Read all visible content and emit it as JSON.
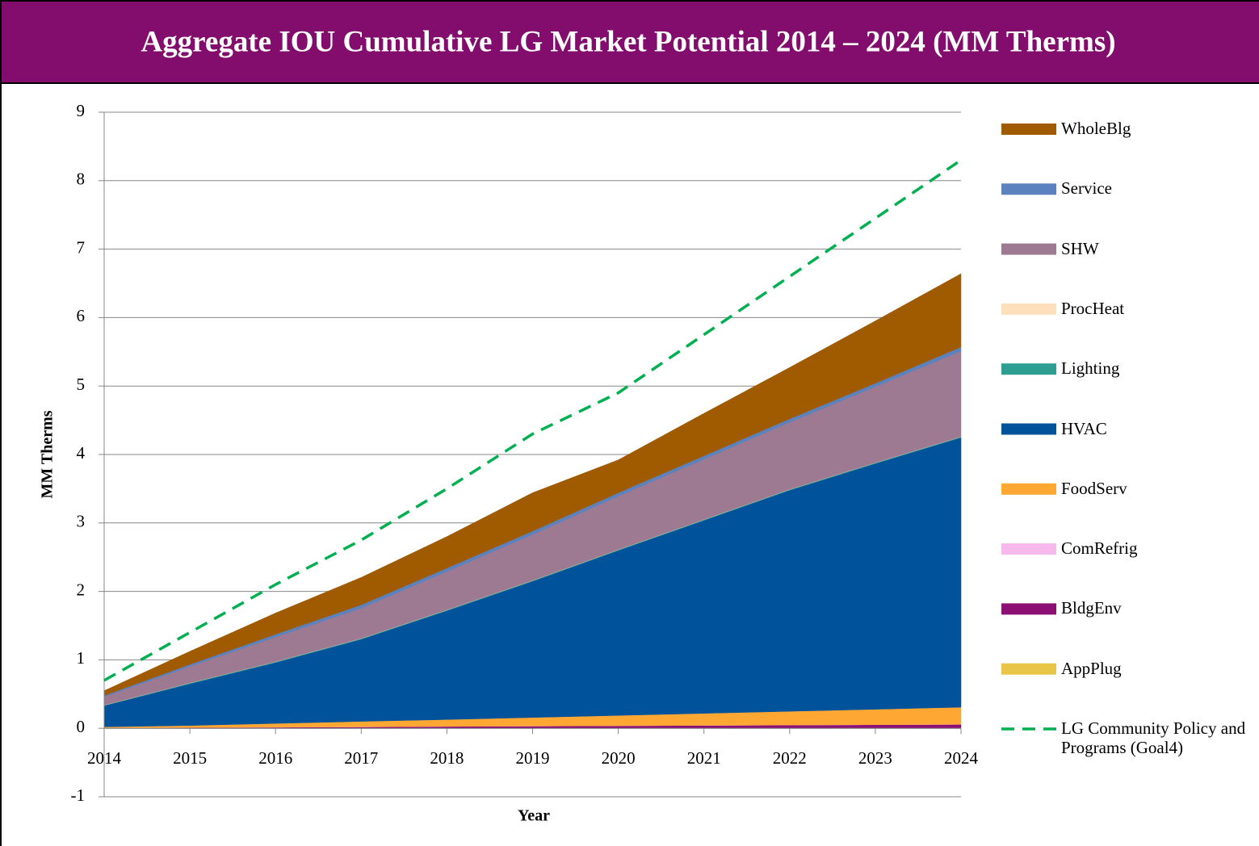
{
  "chart_data": {
    "type": "area",
    "stacked": true,
    "title": "Aggregate IOU Cumulative LG Market Potential 2014 – 2024 (MM Therms)",
    "x_label": "Year",
    "y_label": "MM Therms",
    "x": [
      2014,
      2015,
      2016,
      2017,
      2018,
      2019,
      2020,
      2021,
      2022,
      2023,
      2024
    ],
    "xlim": [
      2014,
      2024
    ],
    "xticks": [
      2014,
      2015,
      2016,
      2017,
      2018,
      2019,
      2020,
      2021,
      2022,
      2023,
      2024
    ],
    "ylim": [
      -1,
      9
    ],
    "yticks": [
      -1,
      0,
      1,
      2,
      3,
      4,
      5,
      6,
      7,
      8,
      9
    ],
    "grid": true,
    "legend": "right",
    "series": [
      {
        "name": "AppPlug",
        "color": "#e8c547",
        "values": [
          0.002,
          0.002,
          0.002,
          0.002,
          0.002,
          0.002,
          0.002,
          0.002,
          0.002,
          0.002,
          0.002
        ]
      },
      {
        "name": "BldgEnv",
        "color": "#8c0f73",
        "values": [
          0.003,
          0.008,
          0.013,
          0.018,
          0.025,
          0.03,
          0.035,
          0.04,
          0.045,
          0.05,
          0.055
        ]
      },
      {
        "name": "ComRefrig",
        "color": "#f7b8ec",
        "values": [
          0.001,
          0.001,
          0.001,
          0.001,
          0.001,
          0.001,
          0.001,
          0.001,
          0.001,
          0.001,
          0.001
        ]
      },
      {
        "name": "FoodServ",
        "color": "#fea833",
        "values": [
          0.015,
          0.03,
          0.055,
          0.08,
          0.1,
          0.125,
          0.15,
          0.175,
          0.2,
          0.225,
          0.25
        ]
      },
      {
        "name": "HVAC",
        "color": "#00529b",
        "values": [
          0.31,
          0.61,
          0.89,
          1.2,
          1.59,
          1.99,
          2.41,
          2.82,
          3.23,
          3.59,
          3.94
        ]
      },
      {
        "name": "Lighting",
        "color": "#2e9e92",
        "values": [
          0.005,
          0.01,
          0.01,
          0.01,
          0.01,
          0.01,
          0.01,
          0.01,
          0.01,
          0.01,
          0.01
        ]
      },
      {
        "name": "ProcHeat",
        "color": "#fde0bb",
        "values": [
          0.003,
          0.003,
          0.003,
          0.003,
          0.003,
          0.003,
          0.003,
          0.003,
          0.003,
          0.003,
          0.003
        ]
      },
      {
        "name": "SHW",
        "color": "#9e7a92",
        "values": [
          0.12,
          0.24,
          0.36,
          0.44,
          0.56,
          0.67,
          0.78,
          0.88,
          0.98,
          1.11,
          1.25
        ]
      },
      {
        "name": "Service",
        "color": "#5b82be",
        "values": [
          0.02,
          0.03,
          0.04,
          0.05,
          0.05,
          0.05,
          0.05,
          0.05,
          0.05,
          0.05,
          0.06
        ]
      },
      {
        "name": "WholeBlg",
        "color": "#a05a00",
        "values": [
          0.07,
          0.19,
          0.31,
          0.4,
          0.46,
          0.56,
          0.48,
          0.62,
          0.75,
          0.91,
          1.07
        ]
      },
      {
        "name": "LG Community Policy and Programs (Goal4)",
        "type": "line",
        "dashed": true,
        "color": "#00b050",
        "values": [
          0.7,
          1.4,
          2.1,
          2.75,
          3.5,
          4.3,
          4.9,
          5.75,
          6.6,
          7.45,
          8.3
        ]
      }
    ]
  }
}
